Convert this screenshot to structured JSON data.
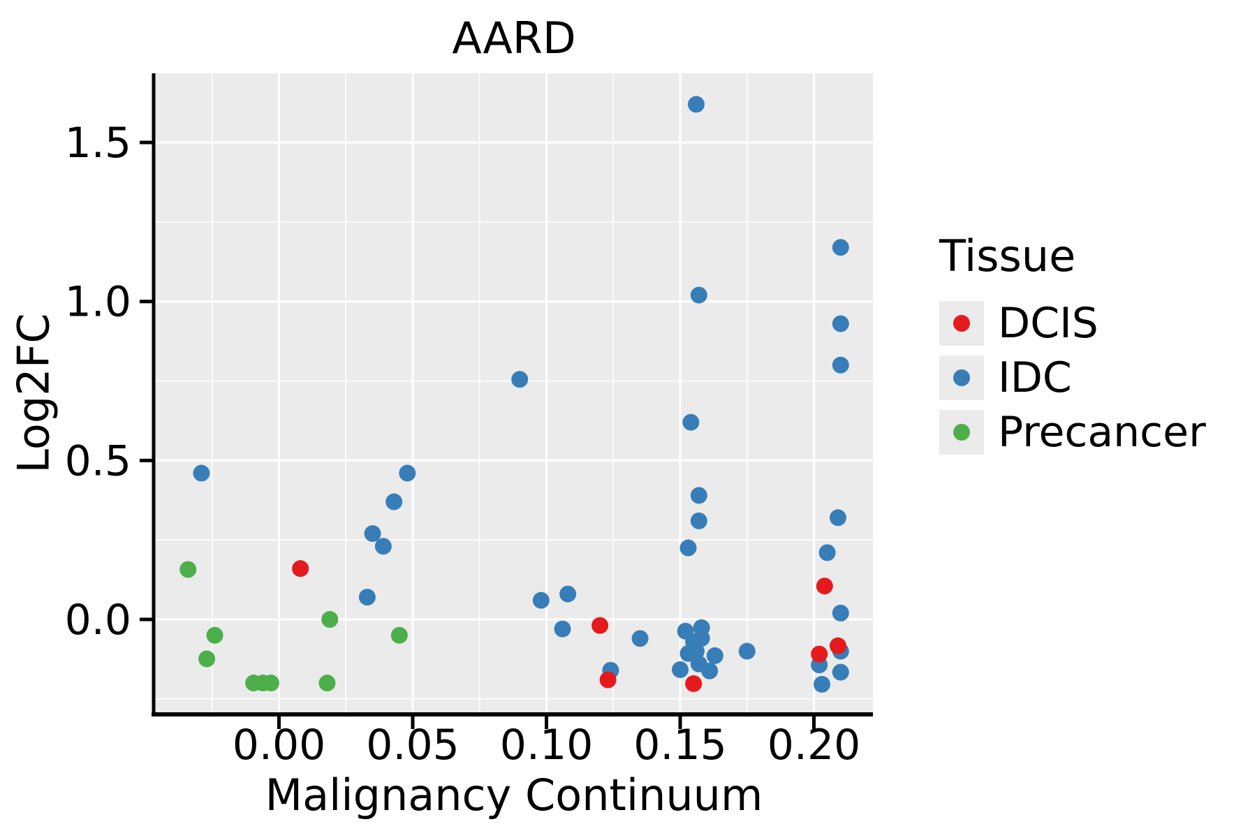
{
  "figure": {
    "title": "AARD"
  },
  "chart_data": {
    "type": "scatter",
    "title": "AARD",
    "xlabel": "Malignancy Continuum",
    "ylabel": "Log2FC",
    "x_ticks": [
      0.0,
      0.05,
      0.1,
      0.15,
      0.2
    ],
    "x_tick_labels": [
      "0.00",
      "0.05",
      "0.10",
      "0.15",
      "0.20"
    ],
    "y_ticks": [
      0.0,
      0.5,
      1.0,
      1.5
    ],
    "y_tick_labels": [
      "0.0",
      "0.5",
      "1.0",
      "1.5"
    ],
    "x_minor_gridlines": [
      -0.025,
      0.025,
      0.075,
      0.125,
      0.175
    ],
    "y_minor_gridlines": [
      -0.25,
      0.25,
      0.75,
      1.25
    ],
    "xlim": [
      -0.0464,
      0.2219
    ],
    "ylim": [
      -0.296,
      1.717
    ],
    "grid": true,
    "panel_background": "#ebebeb",
    "gridline_color": "#ffffff",
    "spine_color": "#000000",
    "legend_title": "Tissue",
    "legend_position": "right",
    "point_radius_px": 12,
    "draw_order": [
      "IDC",
      "DCIS",
      "Precancer"
    ],
    "series": [
      {
        "name": "DCIS",
        "color": "#e41a1c",
        "points": [
          [
            0.008,
            0.16
          ],
          [
            0.12,
            -0.019
          ],
          [
            0.123,
            -0.19
          ],
          [
            0.155,
            -0.202
          ],
          [
            0.204,
            0.105
          ],
          [
            0.209,
            -0.083
          ],
          [
            0.202,
            -0.109
          ]
        ]
      },
      {
        "name": "IDC",
        "color": "#377eb8",
        "points": [
          [
            -0.029,
            0.46
          ],
          [
            0.033,
            0.07
          ],
          [
            0.035,
            0.27
          ],
          [
            0.039,
            0.23
          ],
          [
            0.043,
            0.37
          ],
          [
            0.048,
            0.46
          ],
          [
            0.09,
            0.755
          ],
          [
            0.098,
            0.06
          ],
          [
            0.108,
            0.08
          ],
          [
            0.106,
            -0.03
          ],
          [
            0.124,
            -0.16
          ],
          [
            0.135,
            -0.06
          ],
          [
            0.156,
            1.62
          ],
          [
            0.157,
            1.02
          ],
          [
            0.154,
            0.62
          ],
          [
            0.157,
            0.39
          ],
          [
            0.157,
            0.31
          ],
          [
            0.153,
            0.225
          ],
          [
            0.152,
            -0.037
          ],
          [
            0.158,
            -0.026
          ],
          [
            0.155,
            -0.07
          ],
          [
            0.158,
            -0.059
          ],
          [
            0.153,
            -0.107
          ],
          [
            0.156,
            -0.1
          ],
          [
            0.163,
            -0.114
          ],
          [
            0.15,
            -0.158
          ],
          [
            0.157,
            -0.14
          ],
          [
            0.161,
            -0.162
          ],
          [
            0.175,
            -0.1
          ],
          [
            0.21,
            1.17
          ],
          [
            0.21,
            0.93
          ],
          [
            0.21,
            0.8
          ],
          [
            0.209,
            0.32
          ],
          [
            0.205,
            0.21
          ],
          [
            0.21,
            0.02
          ],
          [
            0.21,
            -0.1
          ],
          [
            0.202,
            -0.143
          ],
          [
            0.21,
            -0.166
          ],
          [
            0.203,
            -0.204
          ]
        ]
      },
      {
        "name": "Precancer",
        "color": "#4daf4a",
        "points": [
          [
            -0.034,
            0.157
          ],
          [
            -0.024,
            -0.05
          ],
          [
            -0.027,
            -0.124
          ],
          [
            -0.0095,
            -0.2
          ],
          [
            -0.006,
            -0.2
          ],
          [
            -0.003,
            -0.2
          ],
          [
            0.018,
            -0.2
          ],
          [
            0.019,
            0.0
          ],
          [
            0.045,
            -0.05
          ]
        ]
      }
    ]
  }
}
